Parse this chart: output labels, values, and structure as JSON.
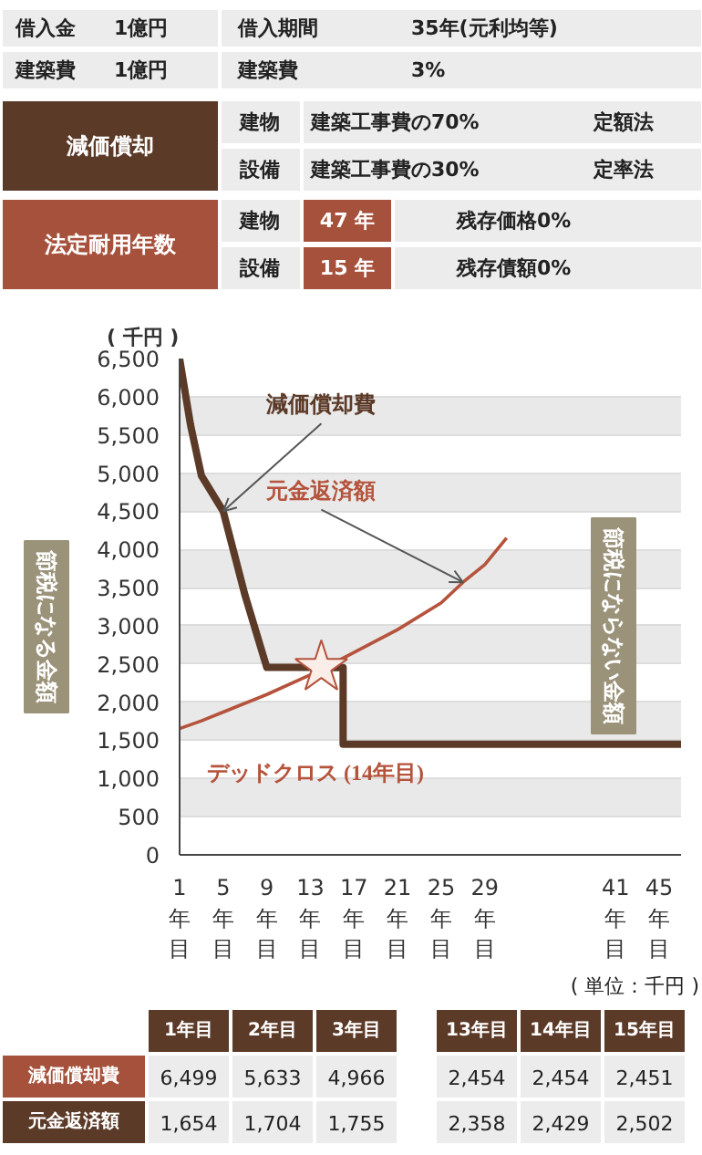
{
  "chart_data": {
    "type": "line",
    "ylabel": "( 千円 )",
    "ylim": [
      0,
      6500
    ],
    "yticks": [
      0,
      500,
      {
        "value": 1000,
        "label": "1,000"
      },
      {
        "value": 1500,
        "label": "1,500"
      },
      {
        "value": 2000,
        "label": "2,000"
      },
      {
        "value": 2500,
        "label": "2,500"
      },
      {
        "value": 3000,
        "label": "3,000"
      },
      {
        "value": 3500,
        "label": "3,500"
      },
      {
        "value": 4000,
        "label": "4,000"
      },
      {
        "value": 4500,
        "label": "4,500"
      },
      {
        "value": 5000,
        "label": "5,000"
      },
      {
        "value": 5500,
        "label": "5,500"
      },
      {
        "value": 6000,
        "label": "6,000"
      },
      {
        "value": 6500,
        "label": "6,500"
      }
    ],
    "xlim": [
      1,
      47
    ],
    "xticks": [
      {
        "value": 1,
        "label": "1年目"
      },
      {
        "value": 5,
        "label": "5年目"
      },
      {
        "value": 9,
        "label": "9年目"
      },
      {
        "value": 13,
        "label": "13年目"
      },
      {
        "value": 17,
        "label": "17年目"
      },
      {
        "value": 21,
        "label": "21年目"
      },
      {
        "value": 25,
        "label": "25年目"
      },
      {
        "value": 29,
        "label": "29年目"
      },
      {
        "value": 41,
        "label": "41年目"
      },
      {
        "value": 45,
        "label": "45年目"
      }
    ],
    "grid": "y",
    "series": [
      {
        "name": "減価償却費",
        "color": "#5c3a28",
        "x": [
          1,
          2,
          3,
          5,
          7,
          9,
          13,
          14,
          15,
          16,
          16,
          47
        ],
        "values": [
          6499,
          5633,
          4966,
          4500,
          3400,
          2454,
          2454,
          2454,
          2451,
          2451,
          1450,
          1450
        ]
      },
      {
        "name": "元金返済額",
        "color": "#b5533c",
        "x": [
          1,
          2,
          3,
          5,
          9,
          13,
          14,
          15,
          21,
          25,
          27,
          29,
          31
        ],
        "values": [
          1654,
          1704,
          1755,
          1870,
          2100,
          2358,
          2429,
          2502,
          2950,
          3300,
          3570,
          3800,
          4150
        ]
      }
    ],
    "annotations": [
      "デッドクロス (14年目)",
      "借入金",
      "1億円",
      "借入期間",
      "35年(元利均等)",
      "建築費",
      "1億円",
      "建築費",
      "3%",
      "減価償却",
      "建物",
      "建築工事費の70%",
      "定額法",
      "設備",
      "建築工事費の30%",
      "定率法",
      "法定耐用年数",
      "建物",
      "47 年",
      "残存価格0%",
      "設備",
      "15 年",
      "残存債額0%",
      "節税になる金額",
      "節税にならない金額",
      "( 単位：千円 )",
      "1年目",
      "2年目",
      "3年目",
      "13年目",
      "14年目",
      "15年目",
      "減価償却費",
      "6,499",
      "5,633",
      "4,966",
      "2,454",
      "2,454",
      "2,451",
      "元金返済額",
      "1,654",
      "1,704",
      "1,755",
      "2,358",
      "2,429",
      "2,502"
    ]
  }
}
